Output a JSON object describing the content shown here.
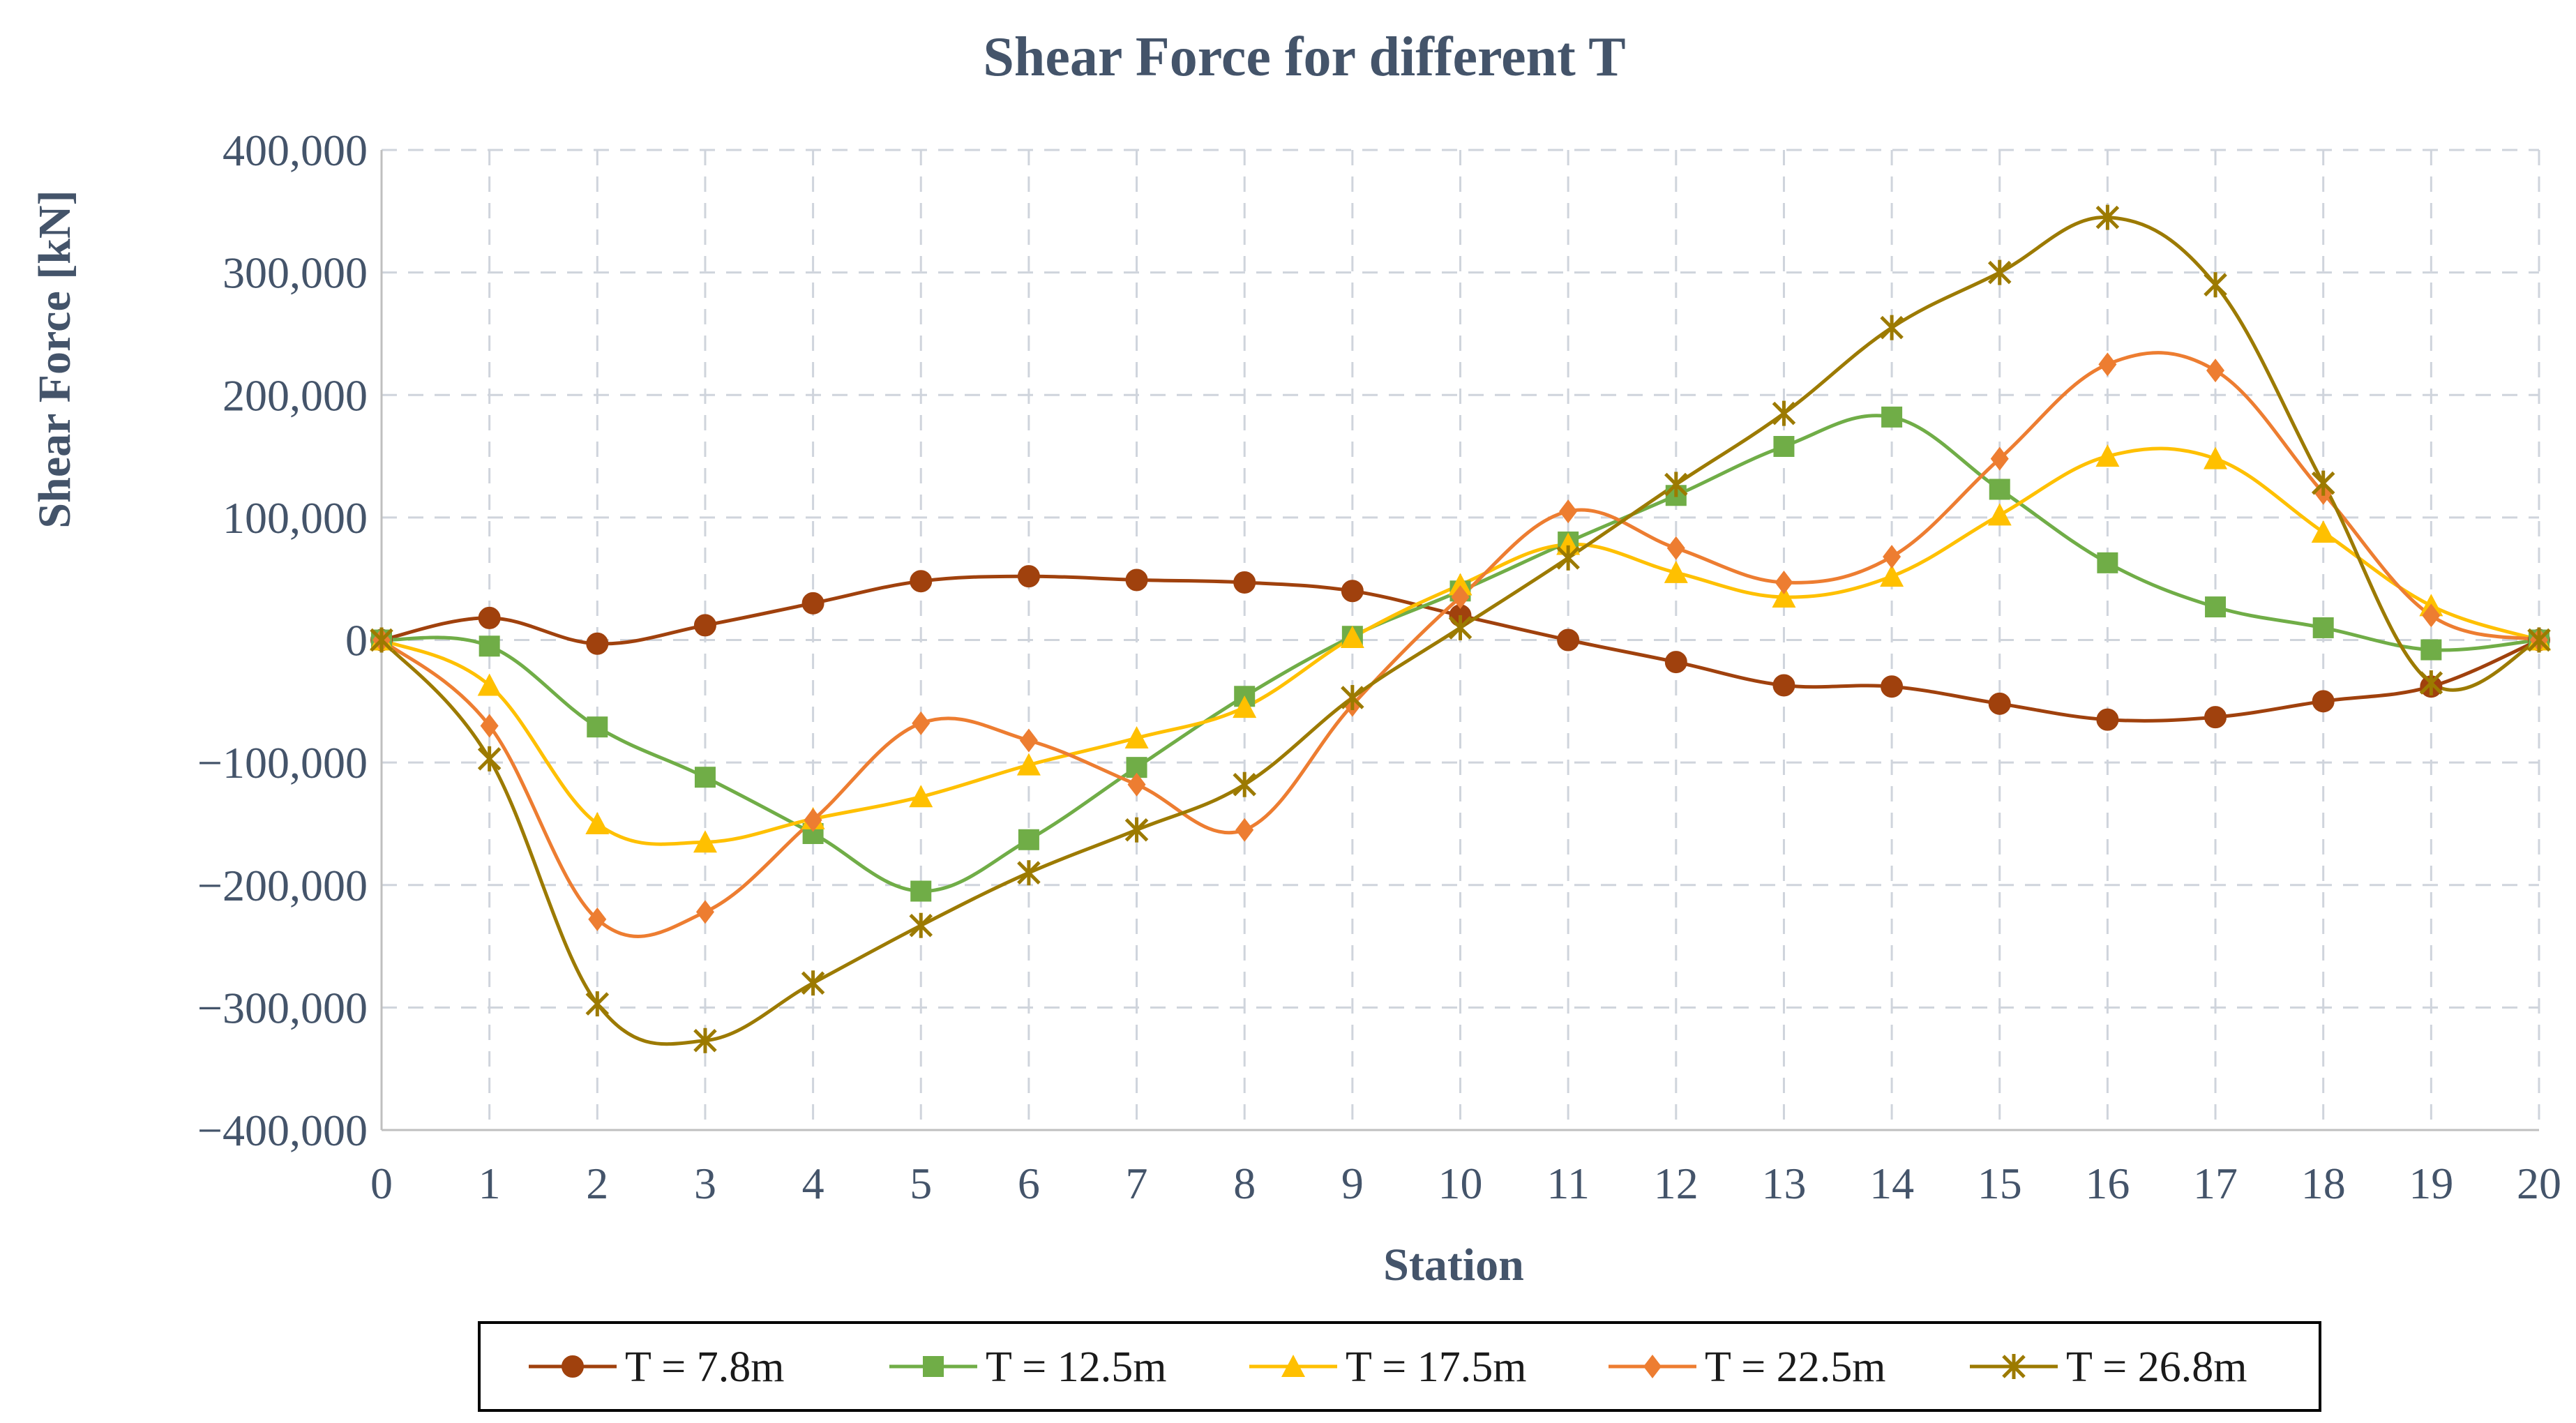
{
  "chart_data": {
    "type": "line",
    "title": "Shear Force for different  T",
    "xlabel": "Station",
    "ylabel": "Shear Force [kN]",
    "x": [
      0,
      1,
      2,
      3,
      4,
      5,
      6,
      7,
      8,
      9,
      10,
      11,
      12,
      13,
      14,
      15,
      16,
      17,
      18,
      19,
      20
    ],
    "xlim": [
      0,
      20
    ],
    "ylim": [
      -400000,
      400000
    ],
    "y_ticks": [
      400000,
      300000,
      200000,
      100000,
      0,
      -100000,
      -200000,
      -300000,
      -400000
    ],
    "y_tick_labels": [
      "400,000",
      "300,000",
      "200,000",
      "100,000",
      "0",
      "−100,000",
      "−200,000",
      "−300,000",
      "−400,000"
    ],
    "x_tick_labels": [
      "0",
      "1",
      "2",
      "3",
      "4",
      "5",
      "6",
      "7",
      "8",
      "9",
      "10",
      "11",
      "12",
      "13",
      "14",
      "15",
      "16",
      "17",
      "18",
      "19",
      "20"
    ],
    "grid": true,
    "legend_position": "bottom",
    "series": [
      {
        "name": "T = 7.8m",
        "color": "#A0410D",
        "marker": "circle",
        "values": [
          0,
          18000,
          -3000,
          12000,
          30000,
          48000,
          52000,
          49000,
          47000,
          40000,
          20000,
          0,
          -18000,
          -37000,
          -38000,
          -52000,
          -65000,
          -63000,
          -50000,
          -38000,
          0
        ]
      },
      {
        "name": "T = 12.5m",
        "color": "#70AD47",
        "marker": "square",
        "values": [
          0,
          -5000,
          -71000,
          -112000,
          -158000,
          -205000,
          -163000,
          -104000,
          -46000,
          3000,
          40000,
          80000,
          118000,
          158000,
          182000,
          123000,
          63000,
          27000,
          10000,
          -8000,
          0
        ]
      },
      {
        "name": "T = 17.5m",
        "color": "#FFC000",
        "marker": "triangle",
        "values": [
          0,
          -37000,
          -150000,
          -165000,
          -146000,
          -128000,
          -102000,
          -80000,
          -55000,
          2000,
          45000,
          78000,
          55000,
          35000,
          52000,
          102000,
          150000,
          148000,
          88000,
          28000,
          0
        ]
      },
      {
        "name": "T = 22.5m",
        "color": "#ED7D31",
        "marker": "diamond",
        "values": [
          0,
          -70000,
          -228000,
          -222000,
          -147000,
          -68000,
          -82000,
          -118000,
          -155000,
          -53000,
          35000,
          105000,
          75000,
          47000,
          68000,
          148000,
          225000,
          220000,
          120000,
          20000,
          0
        ]
      },
      {
        "name": "T = 26.8m",
        "color": "#9C7A00",
        "marker": "star",
        "values": [
          0,
          -97000,
          -297000,
          -327000,
          -280000,
          -233000,
          -190000,
          -155000,
          -118000,
          -47000,
          10000,
          67000,
          127000,
          185000,
          255000,
          300000,
          345000,
          290000,
          128000,
          -35000,
          0
        ]
      }
    ]
  }
}
